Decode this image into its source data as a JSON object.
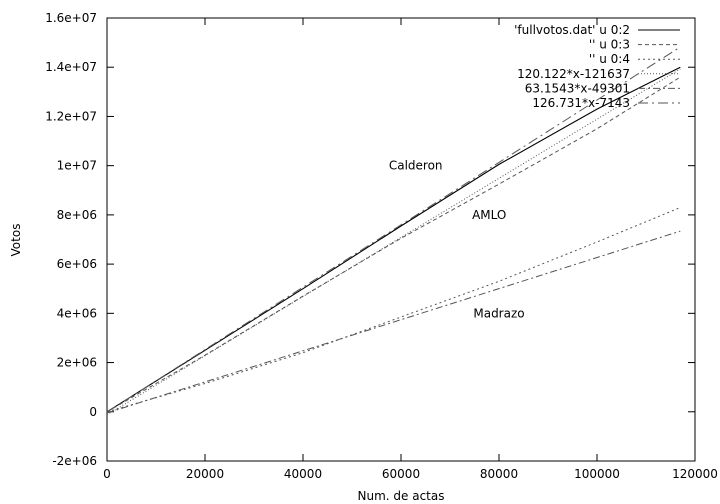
{
  "chart_data": {
    "type": "line",
    "title": "",
    "xlabel": "Num. de actas",
    "ylabel": "Votos",
    "xlim": [
      0,
      120000
    ],
    "ylim": [
      -2000000,
      16000000
    ],
    "grid": false,
    "legend_position": "top-right",
    "xticks": [
      "0",
      "20000",
      "40000",
      "60000",
      "80000",
      "100000",
      "120000"
    ],
    "yticks": [
      "-2e+06",
      "0",
      "2e+06",
      "4e+06",
      "6e+06",
      "8e+06",
      "1e+07",
      "1.2e+07",
      "1.4e+07",
      "1.6e+07"
    ],
    "series": [
      {
        "name": "'fullvotos.dat' u 0:2",
        "style": "solid",
        "color": "#000000",
        "x": [
          0,
          20000,
          40000,
          60000,
          80000,
          100000,
          117000
        ],
        "y": [
          0,
          2500000,
          5000000,
          7550000,
          10050000,
          12300000,
          14000000
        ]
      },
      {
        "name": "'' u 0:3",
        "style": "dashed",
        "color": "#555555",
        "x": [
          0,
          20000,
          40000,
          60000,
          80000,
          100000,
          117000
        ],
        "y": [
          0,
          2300000,
          4700000,
          7050000,
          9250000,
          11500000,
          13600000
        ]
      },
      {
        "name": "'' u 0:4",
        "style": "dashed-short",
        "color": "#555555",
        "x": [
          0,
          20000,
          40000,
          60000,
          80000,
          100000,
          117000
        ],
        "y": [
          0,
          1150000,
          2400000,
          3850000,
          5300000,
          6900000,
          8300000
        ]
      },
      {
        "name": "120.122*x-121637",
        "style": "dotted",
        "color": "#555555",
        "x": [
          0,
          117000
        ],
        "y": [
          -121637,
          13932637
        ]
      },
      {
        "name": "63.1543*x-49301",
        "style": "dash-dot",
        "color": "#555555",
        "x": [
          0,
          117000
        ],
        "y": [
          -49301,
          7339752
        ]
      },
      {
        "name": "126.731*x-7143",
        "style": "dash-dot-long",
        "color": "#555555",
        "x": [
          0,
          117000
        ],
        "y": [
          -7143,
          14820384
        ]
      }
    ],
    "annotations": [
      {
        "text": "Calderon",
        "x": 63000,
        "y": 10000000
      },
      {
        "text": "AMLO",
        "x": 78000,
        "y": 8000000
      },
      {
        "text": "Madrazo",
        "x": 80000,
        "y": 4000000
      }
    ]
  }
}
